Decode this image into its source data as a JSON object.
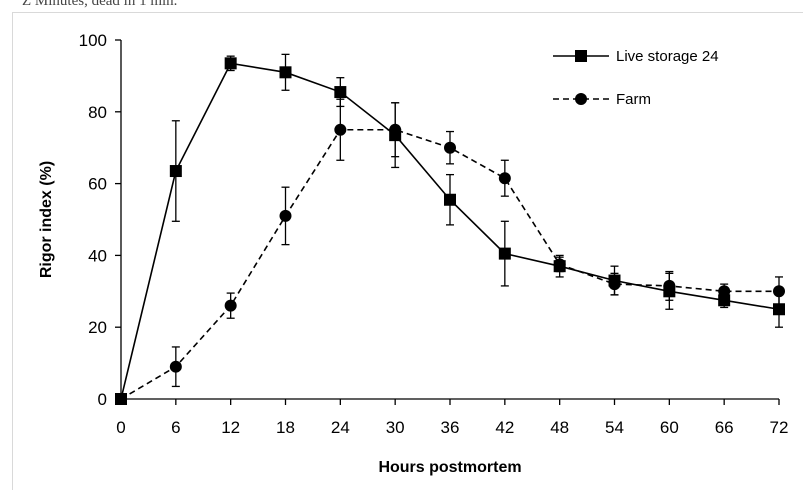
{
  "caption_fragment": "Z Minutes, dead in 1 min.",
  "chart_data": {
    "type": "line",
    "title": "",
    "xlabel": "Hours postmortem",
    "ylabel": "Rigor index (%)",
    "x": [
      0,
      6,
      12,
      18,
      24,
      30,
      36,
      42,
      48,
      54,
      60,
      66,
      72
    ],
    "xlim": [
      0,
      72
    ],
    "ylim": [
      0,
      100
    ],
    "xticks": [
      0,
      6,
      12,
      18,
      24,
      30,
      36,
      42,
      48,
      54,
      60,
      66,
      72
    ],
    "yticks": [
      0,
      20,
      40,
      60,
      80,
      100
    ],
    "grid": false,
    "legend_position": "top-right",
    "series": [
      {
        "name": "Live storage 24",
        "marker": "square",
        "line": "solid",
        "color": "#000000",
        "values": [
          0,
          63.5,
          93.5,
          91,
          85.5,
          73.5,
          55.5,
          40.5,
          37,
          33,
          30,
          27.5,
          25
        ],
        "errors": [
          0,
          14,
          2,
          5,
          4,
          9,
          7,
          9,
          3,
          4,
          5,
          2,
          5
        ]
      },
      {
        "name": "Farm",
        "marker": "circle",
        "line": "dashed",
        "color": "#000000",
        "values": [
          0,
          9,
          26,
          51,
          75,
          75,
          70,
          61.5,
          37.5,
          32,
          31.5,
          30,
          30
        ],
        "errors": [
          0,
          5.5,
          3.5,
          8,
          8.5,
          7.5,
          4.5,
          5,
          2,
          3,
          4,
          2,
          4
        ]
      }
    ]
  }
}
